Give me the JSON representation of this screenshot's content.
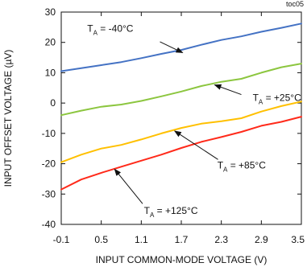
{
  "chart_data": {
    "type": "line",
    "figure_tag": "toc05",
    "xlabel": "INPUT COMMON-MODE VOLTAGE (V)",
    "ylabel": "INPUT OFFSET VOLTAGE (µV)",
    "xlim": [
      -0.1,
      3.5
    ],
    "ylim": [
      -40,
      30
    ],
    "x_ticks": [
      -0.1,
      0.5,
      1.1,
      1.7,
      2.3,
      2.9,
      3.5
    ],
    "x_tick_labels": [
      "-0.1",
      "0.5",
      "1.1",
      "1.7",
      "2.3",
      "2.9",
      "3.5"
    ],
    "y_ticks": [
      -40,
      -30,
      -20,
      -10,
      0,
      10,
      20,
      30
    ],
    "y_tick_labels": [
      "-40",
      "-30",
      "-20",
      "-10",
      "0",
      "10",
      "20",
      "30"
    ],
    "grid": false,
    "series": [
      {
        "name": "TA = -40°C",
        "color": "#4472c4",
        "x": [
          -0.1,
          0.2,
          0.5,
          0.8,
          1.1,
          1.4,
          1.7,
          2.0,
          2.3,
          2.6,
          2.9,
          3.2,
          3.5
        ],
        "y": [
          10.5,
          11.5,
          12.5,
          13.5,
          14.8,
          16.2,
          17.5,
          19.2,
          20.8,
          22.0,
          23.5,
          24.8,
          26.2
        ]
      },
      {
        "name": "TA = +25°C",
        "color": "#8cc63f",
        "x": [
          -0.1,
          0.2,
          0.5,
          0.8,
          1.1,
          1.4,
          1.7,
          2.0,
          2.3,
          2.6,
          2.9,
          3.2,
          3.5
        ],
        "y": [
          -4.0,
          -2.5,
          -1.2,
          -0.5,
          0.7,
          2.2,
          3.8,
          5.6,
          7.0,
          8.0,
          10.0,
          11.8,
          13.0
        ]
      },
      {
        "name": "TA = +85°C",
        "color": "#ffc000",
        "x": [
          -0.1,
          0.2,
          0.5,
          0.8,
          1.1,
          1.4,
          1.7,
          2.0,
          2.3,
          2.6,
          2.9,
          3.2,
          3.5
        ],
        "y": [
          -19.5,
          -17.0,
          -15.0,
          -13.8,
          -12.0,
          -10.0,
          -8.2,
          -6.8,
          -6.0,
          -5.0,
          -2.8,
          -1.0,
          0.5
        ]
      },
      {
        "name": "TA = +125°C",
        "color": "#ff2a1a",
        "x": [
          -0.1,
          0.2,
          0.5,
          0.8,
          1.1,
          1.4,
          1.7,
          2.0,
          2.3,
          2.6,
          2.9,
          3.2,
          3.5
        ],
        "y": [
          -28.5,
          -25.2,
          -23.0,
          -21.0,
          -19.0,
          -17.0,
          -14.8,
          -12.8,
          -11.2,
          -9.5,
          -7.5,
          -6.2,
          -4.5
        ]
      }
    ],
    "annotations": [
      {
        "main": "T",
        "sub": "A",
        "rest": " = -40°C",
        "text_at": [
          0.29,
          23.5
        ],
        "arrow_from": [
          1.38,
          20.2
        ],
        "arrow_to": [
          1.72,
          16.6
        ]
      },
      {
        "main": "T",
        "sub": "A",
        "rest": " = +25°C",
        "text_at": [
          2.77,
          0.7
        ],
        "arrow_from": [
          2.6,
          2.8
        ],
        "arrow_to": [
          2.2,
          6.0
        ]
      },
      {
        "main": "T",
        "sub": "A",
        "rest": " = +85°C",
        "text_at": [
          2.24,
          -21.6
        ],
        "arrow_from": [
          2.25,
          -18.6
        ],
        "arrow_to": [
          1.6,
          -9.2
        ]
      },
      {
        "main": "T",
        "sub": "A",
        "rest": " = +125°C",
        "text_at": [
          1.14,
          -36.6
        ],
        "arrow_from": [
          1.12,
          -33.2
        ],
        "arrow_to": [
          0.7,
          -21.8
        ]
      }
    ]
  }
}
